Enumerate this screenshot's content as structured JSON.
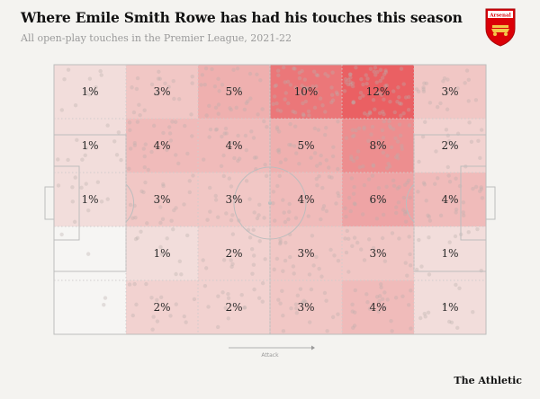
{
  "header": {
    "title": "Where Emile Smith Rowe has had his touches this season",
    "subtitle": "All open-play touches in the Premier League, 2021-22"
  },
  "crest": {
    "text": "Arsenal",
    "color": "#db0007"
  },
  "attack_label": "Attack",
  "brand": "The Athletic",
  "chart_data": {
    "type": "heatmap",
    "columns": 6,
    "rows": 5,
    "cells": [
      [
        1,
        3,
        5,
        10,
        12,
        3
      ],
      [
        1,
        4,
        4,
        5,
        8,
        2
      ],
      [
        1,
        3,
        3,
        4,
        6,
        4
      ],
      [
        null,
        1,
        2,
        3,
        3,
        1
      ],
      [
        null,
        2,
        2,
        3,
        4,
        1
      ]
    ],
    "unit": "%",
    "color_scale": {
      "low": "#f4f3f0",
      "high": "#e8484c"
    },
    "direction": "left-to-right"
  }
}
